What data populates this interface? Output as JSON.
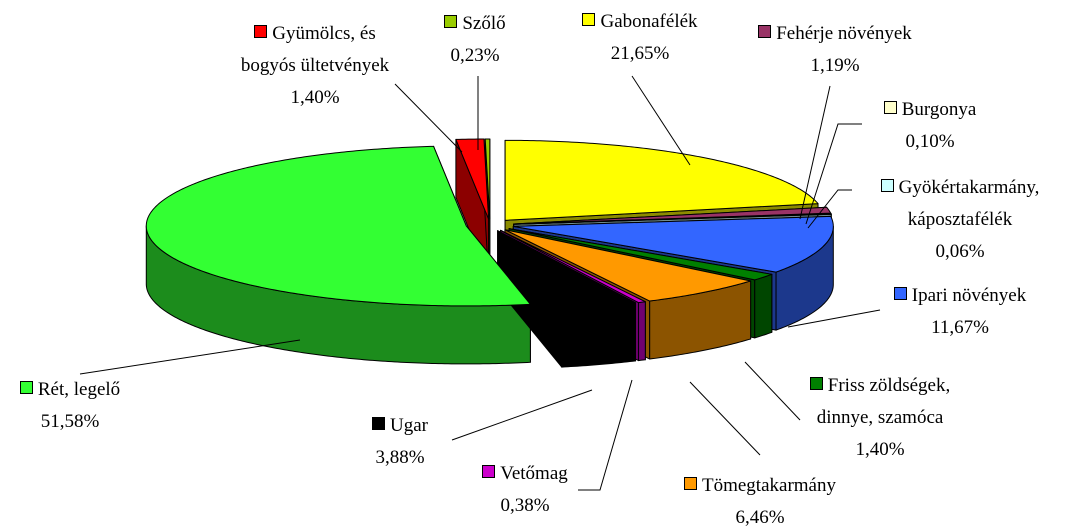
{
  "chart_data": {
    "type": "pie",
    "categories": [
      "Gabonafélék",
      "Fehérje növények",
      "Burgonya",
      "Gyökértakarmány, káposztafélék",
      "Ipari növények",
      "Friss zöldségek, dinnye, szamóca",
      "Tömegtakarmány",
      "Vetőmag",
      "Ugar",
      "Rét, legelő",
      "Gyümölcs, és bogyós ültetvények",
      "Szőlő"
    ],
    "values": [
      21.65,
      1.19,
      0.1,
      0.06,
      11.67,
      1.4,
      6.46,
      0.38,
      3.88,
      51.58,
      1.4,
      0.23
    ],
    "value_labels": [
      "21,65%",
      "1,19%",
      "0,10%",
      "0,06%",
      "11,67%",
      "1,40%",
      "6,46%",
      "0,38%",
      "3,88%",
      "51,58%",
      "1,40%",
      "0,23%"
    ],
    "colors": [
      "#ffff00",
      "#993366",
      "#ffffcc",
      "#ccffff",
      "#3366ff",
      "#008000",
      "#ff9900",
      "#cc00cc",
      "#000000",
      "#33ff33",
      "#ff0000",
      "#99cc00"
    ]
  }
}
